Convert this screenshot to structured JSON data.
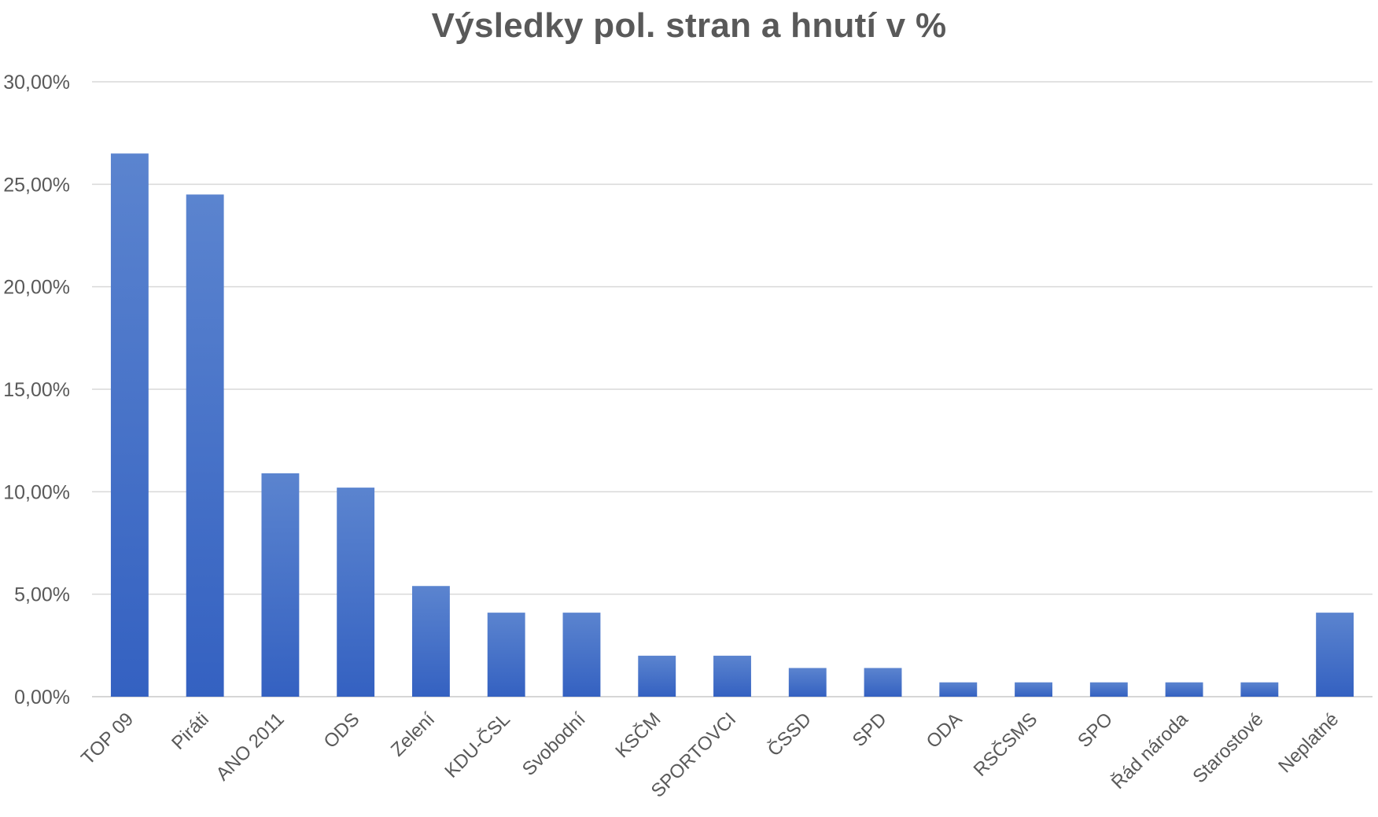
{
  "chart_data": {
    "type": "bar",
    "title": "Výsledky pol. stran a hnutí v %",
    "xlabel": "",
    "ylabel": "",
    "ylim": [
      0,
      30
    ],
    "y_ticks": [
      "0,00%",
      "5,00%",
      "10,00%",
      "15,00%",
      "20,00%",
      "25,00%",
      "30,00%"
    ],
    "y_tick_values": [
      0,
      5,
      10,
      15,
      20,
      25,
      30
    ],
    "grid": true,
    "legend": "none",
    "bar_color": "#4472C4",
    "categories": [
      "TOP 09",
      "Piráti",
      "ANO 2011",
      "ODS",
      "Zelení",
      "KDU-ČSL",
      "Svobodní",
      "KSČM",
      "SPORTOVCI",
      "ČSSD",
      "SPD",
      "ODA",
      "RSČSMS",
      "SPO",
      "Řád národa",
      "Starostové",
      "Neplatné"
    ],
    "values": [
      26.5,
      24.5,
      10.9,
      10.2,
      5.4,
      4.1,
      4.1,
      2.0,
      2.0,
      1.4,
      1.4,
      0.7,
      0.7,
      0.7,
      0.7,
      0.7,
      4.1
    ]
  }
}
